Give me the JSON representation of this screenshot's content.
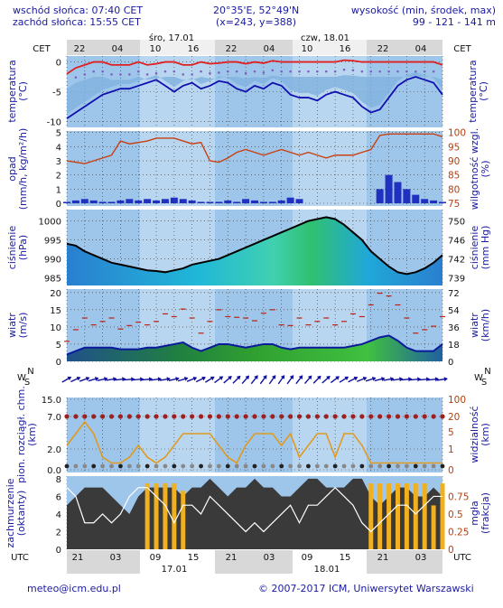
{
  "header": {
    "sunrise": "wschód słońca: 07:40 CET",
    "sunset": "zachód słońca: 15:55 CET",
    "coords": "20°35'E, 52°49'N",
    "grid": "(x=243, y=388)",
    "elev_label": "wysokość (min, środek, max)",
    "elev_values": "99 - 121 - 141 m"
  },
  "time_axis": {
    "tz_top": "CET",
    "tz_bottom": "UTC",
    "top_hours": [
      "22",
      "04",
      "10",
      "16",
      "22",
      "04",
      "10",
      "16",
      "22",
      "04"
    ],
    "bottom_hours": [
      "21",
      "03",
      "09",
      "15",
      "21",
      "03",
      "09",
      "15",
      "21",
      "03"
    ],
    "day1_top": "śro, 17.01",
    "day2_top": "czw, 18.01",
    "day1_bottom": "17.01",
    "day2_bottom": "18.01"
  },
  "panels": {
    "temp": {
      "left": "temperatura\n(°C)",
      "right": "temperatura\n(°C)",
      "ticks": [
        "0",
        "-5",
        "-10"
      ]
    },
    "precip": {
      "left": "opad\n(mm/h, kg/m²/h)",
      "right": "wilgotność wzgl.\n(%)",
      "ticks_left": [
        "5",
        "4",
        "3",
        "2",
        "1",
        "0"
      ],
      "ticks_right": [
        "100",
        "95",
        "90",
        "85",
        "80",
        "75"
      ]
    },
    "pressure": {
      "left": "ciśnienie\n(hPa)",
      "right": "ciśnienie\n(mm Hg)",
      "ticks_left": [
        "1000",
        "995",
        "990",
        "985"
      ],
      "ticks_right": [
        "750",
        "746",
        "742",
        "739"
      ]
    },
    "wind": {
      "left": "wiatr\n(m/s)",
      "right": "wiatr\n(km/h)",
      "ticks_left": [
        "20",
        "15",
        "10",
        "5",
        "0"
      ],
      "ticks_right": [
        "72",
        "54",
        "36",
        "18",
        "0"
      ]
    },
    "cloudbase": {
      "left": "pion. rozciągł. chm.\n(km)",
      "right": "widzialność\n(km)",
      "ticks_left": [
        "15.0",
        "7.0",
        "2.0",
        "0.0"
      ],
      "ticks_right": [
        "100",
        "20",
        "5",
        "1",
        "0"
      ]
    },
    "cloud": {
      "left": "zachmurzenie\n(oktanty)",
      "right": "mgła\n(frakcja)",
      "ticks_left": [
        "8",
        "6",
        "4",
        "2",
        "0"
      ],
      "ticks_right": [
        "0.75",
        "0.5",
        "0.25",
        "0"
      ]
    }
  },
  "footer": {
    "email": "meteo@icm.edu.pl",
    "copyright": "© 2007-2017 ICM, Uniwersytet Warszawski"
  },
  "chart_data": [
    {
      "type": "line",
      "title": "temperatura",
      "ylabel": "temperatura (°C)",
      "ylim": [
        -11,
        1
      ],
      "series": [
        {
          "values": [
            -2.0,
            -1.0,
            -0.5,
            0,
            0,
            -0.5,
            -0.5,
            -0.5,
            0,
            -0.5,
            -0.3,
            0,
            0,
            -0.5,
            -0.5,
            0,
            -0.3,
            -0.2,
            0,
            0,
            -0.3,
            0,
            -0.2,
            0.2,
            0,
            0,
            0,
            0,
            0,
            0,
            0,
            0.3,
            0.2,
            0,
            0,
            0,
            0,
            0,
            0,
            0,
            0,
            0,
            -0.5
          ]
        },
        {
          "values": [
            -9.5,
            -8.5,
            -7.5,
            -6.5,
            -5.5,
            -5.0,
            -4.5,
            -4.5,
            -4.0,
            -3.5,
            -3.0,
            -4.0,
            -5.0,
            -4.0,
            -3.5,
            -4.5,
            -4.0,
            -3.2,
            -3.5,
            -4.5,
            -5.0,
            -4.0,
            -4.5,
            -3.5,
            -4.0,
            -5.5,
            -6.0,
            -6.0,
            -6.5,
            -5.5,
            -5.0,
            -5.5,
            -6.0,
            -7.5,
            -8.5,
            -8.0,
            -6.0,
            -4.0,
            -3.0,
            -2.5,
            -3.0,
            -3.5,
            -5.5
          ]
        }
      ]
    },
    {
      "type": "bar",
      "title": "opad",
      "ylabel": "opad (mm/h, kg/m²/h)",
      "ylim": [
        0,
        5
      ]
    },
    {
      "type": "line",
      "title": "ciśnienie",
      "ylabel": "ciśnienie (hPa)",
      "ylim": [
        983,
        1003
      ],
      "series": [
        {
          "values": [
            994,
            993.5,
            992,
            991,
            990,
            989,
            988.5,
            988,
            987.5,
            987,
            986.8,
            986.5,
            987,
            987.5,
            988.5,
            989,
            989.5,
            990,
            991,
            992,
            993,
            994,
            995,
            996,
            997,
            998,
            999,
            1000,
            1000.5,
            1001,
            1000.5,
            999,
            997,
            995,
            992,
            990,
            988,
            986.5,
            986,
            986.5,
            987.5,
            989,
            991
          ]
        }
      ]
    },
    {
      "type": "area",
      "title": "wiatr",
      "ylabel": "wiatr (m/s)",
      "ylim": [
        0,
        20
      ],
      "series": [
        {
          "values": [
            2,
            3,
            4,
            4,
            4,
            4,
            3.5,
            3.5,
            3.5,
            4,
            4,
            4.5,
            5,
            5.5,
            4,
            3,
            4,
            5,
            5,
            4.5,
            4,
            4.5,
            5,
            5,
            4,
            3.5,
            4,
            4,
            4,
            4,
            4,
            4,
            4.5,
            5,
            6,
            7,
            7.5,
            6,
            4,
            3,
            3,
            3,
            5
          ]
        }
      ]
    }
  ]
}
